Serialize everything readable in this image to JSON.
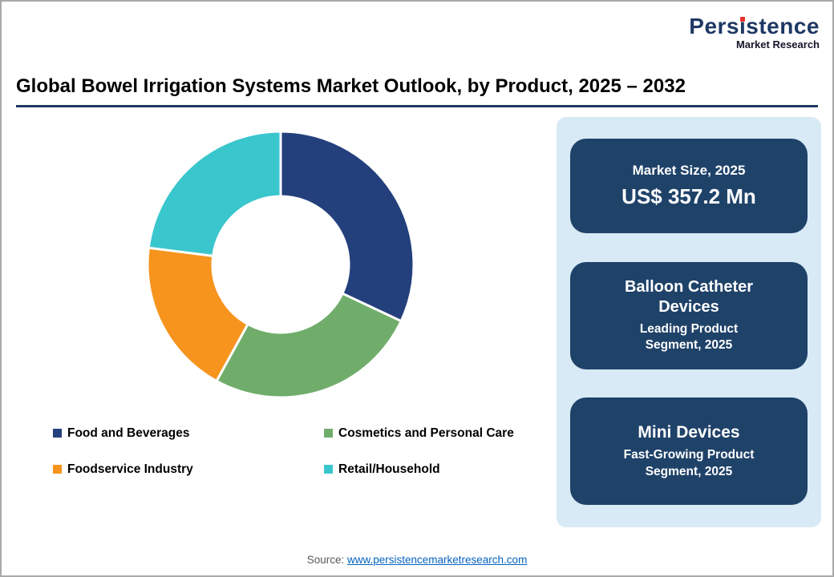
{
  "page": {
    "title": "Global Bowel Irrigation Systems Market Outlook, by Product, 2025 – 2032",
    "source_label": "Source:",
    "source_link": "www.persistencemarketresearch.com"
  },
  "logo": {
    "part1": "Pers",
    "part2": "ı",
    "part3": "stence",
    "subtitle": "Market Research"
  },
  "theme": {
    "navy": "#1f3864",
    "box_navy": "#1f4269",
    "panel_blue": "#d7eaf5",
    "logo_red": "#e8312a"
  },
  "chart_data": {
    "type": "pie",
    "donut": true,
    "title": "Global Bowel Irrigation Systems Market Outlook, by Product, 2025 – 2032",
    "categories": [
      "Food and Beverages",
      "Cosmetics and Personal Care",
      "Foodservice Industry",
      "Retail/Household"
    ],
    "values": [
      32,
      26,
      19,
      23
    ],
    "colors": [
      "#24407c",
      "#70ad6b",
      "#f6941e",
      "#3ac6cd"
    ],
    "start_angle_deg": 0,
    "direction": "clockwise",
    "legend_position": "bottom",
    "data_labels": false
  },
  "sidebar": {
    "boxes": [
      {
        "title": "Market Size, 2025",
        "subtitle": "US$ 357.2 Mn"
      },
      {
        "title": "Balloon Catheter Devices",
        "subtitle": "Leading Product Segment, 2025"
      },
      {
        "title": "Mini Devices",
        "subtitle": "Fast-Growing Product Segment, 2025"
      }
    ]
  }
}
